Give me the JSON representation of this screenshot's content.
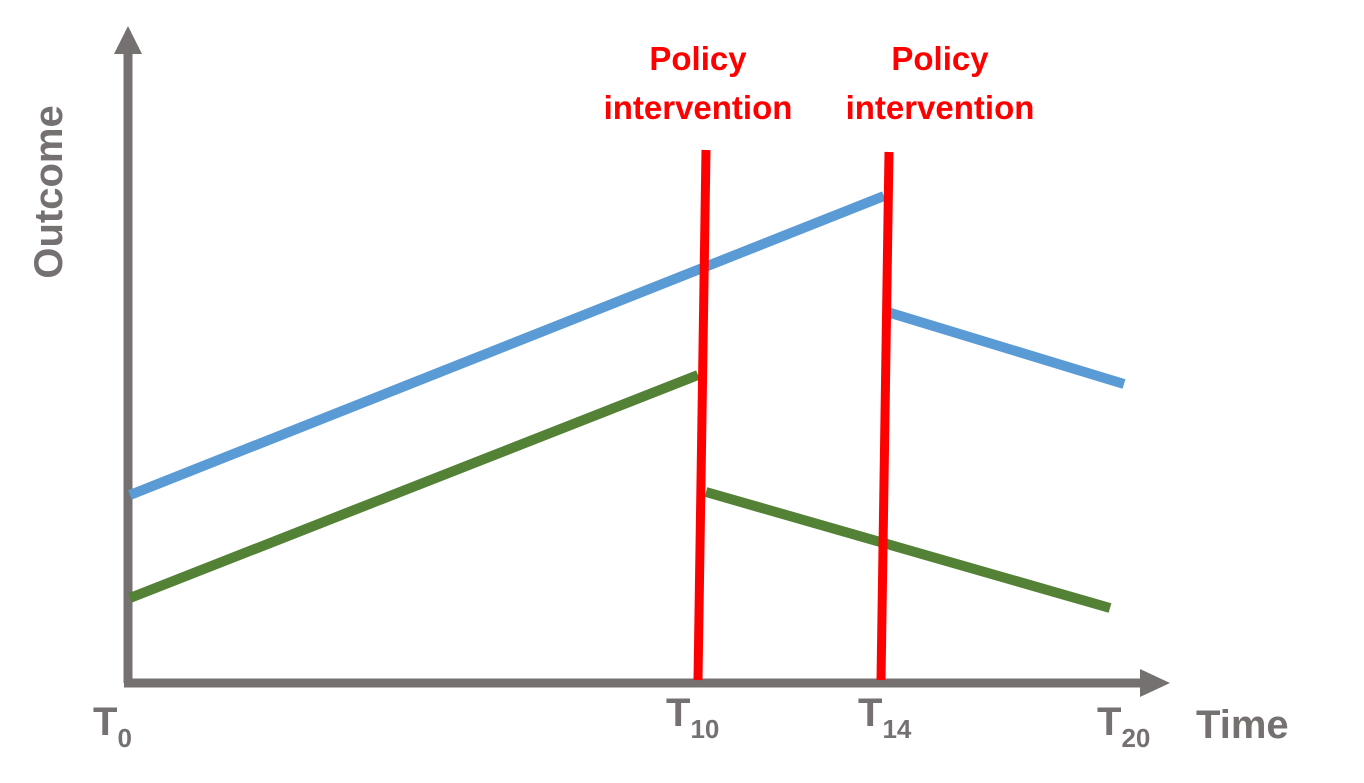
{
  "axes": {
    "x_label": "Time",
    "y_label": "Outcome",
    "ticks": [
      {
        "base": "T",
        "sub": "0"
      },
      {
        "base": "T",
        "sub": "10"
      },
      {
        "base": "T",
        "sub": "14"
      },
      {
        "base": "T",
        "sub": "20"
      }
    ]
  },
  "annotations": [
    {
      "line1": "Policy",
      "line2": "intervention",
      "at": 10
    },
    {
      "line1": "Policy",
      "line2": "intervention",
      "at": 14
    }
  ],
  "colors": {
    "axis": "#767171",
    "intervention": "#ff0000",
    "series_blue": "#5b9bd5",
    "series_green": "#538135"
  }
}
